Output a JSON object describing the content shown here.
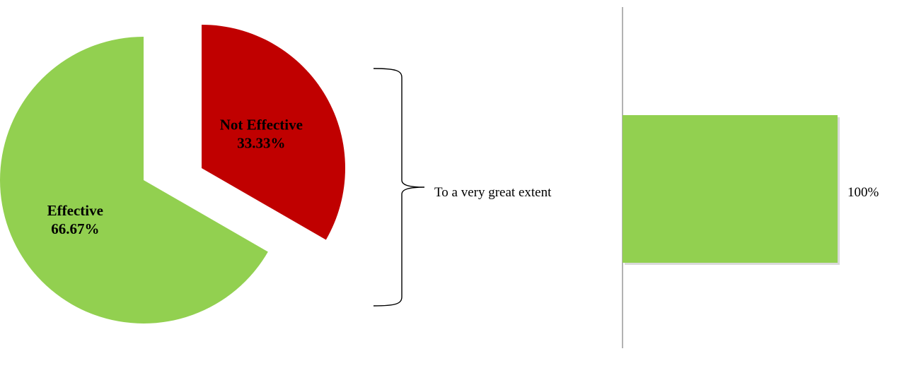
{
  "colors": {
    "effective": "#92d050",
    "not_effective": "#c00000",
    "axis": "#808080",
    "bracket": "#000000"
  },
  "chart_data": [
    {
      "type": "pie",
      "exploded": true,
      "slices": [
        {
          "label": "Not Effective",
          "value": 33.33,
          "display": "33.33%",
          "color": "#c00000"
        },
        {
          "label": "Effective",
          "value": 66.67,
          "display": "66.67%",
          "color": "#92d050"
        }
      ]
    },
    {
      "type": "bar",
      "orientation": "horizontal",
      "categories": [
        "To a very great extent"
      ],
      "values": [
        100
      ],
      "data_labels": [
        "100%"
      ],
      "xlim": [
        0,
        100
      ],
      "color": "#92d050"
    }
  ]
}
